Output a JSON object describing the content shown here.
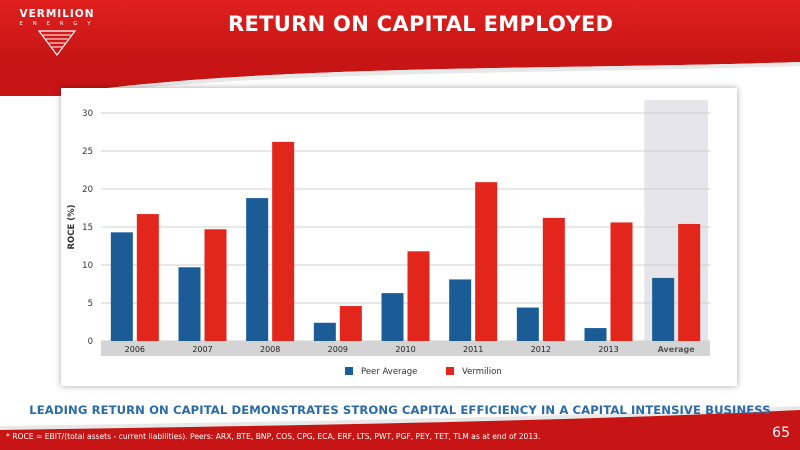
{
  "logo": {
    "name": "VERMILION",
    "sub": "E N E R G Y"
  },
  "title": "RETURN ON CAPITAL EMPLOYED",
  "tagline": "LEADING RETURN ON CAPITAL DEMONSTRATES STRONG CAPITAL EFFICIENCY IN A CAPITAL INTENSIVE BUSINESS",
  "footnote": "* ROCE = EBIT/(total assets - current liabilities).  Peers: ARX, BTE, BNP, COS, CPG, ECA, ERF, LTS, PWT, PGF, PEY, TET, TLM as at end of 2013.",
  "page_number": "65",
  "colors": {
    "brand_red": "#d11c1b",
    "peer_blue": "#1b5c97",
    "vermilion_red": "#e3261c",
    "tagline_blue": "#2a6aa6",
    "highlight_band": "#e6e6ea"
  },
  "chart_data": {
    "type": "bar",
    "categories": [
      "2006",
      "2007",
      "2008",
      "2009",
      "2010",
      "2011",
      "2012",
      "2013",
      "Average"
    ],
    "series": [
      {
        "name": "Peer Average",
        "values": [
          14.3,
          9.7,
          18.8,
          2.4,
          6.3,
          8.1,
          4.4,
          1.7,
          8.3
        ]
      },
      {
        "name": "Vermilion",
        "values": [
          16.7,
          14.7,
          26.2,
          4.6,
          11.8,
          20.9,
          16.2,
          15.6,
          15.4
        ]
      }
    ],
    "ylabel": "ROCE (%)",
    "ylim": [
      0,
      30
    ],
    "yticks": [
      0,
      5,
      10,
      15,
      20,
      25,
      30
    ],
    "highlight_category": "Average",
    "grid": true,
    "legend": "bottom-center"
  }
}
